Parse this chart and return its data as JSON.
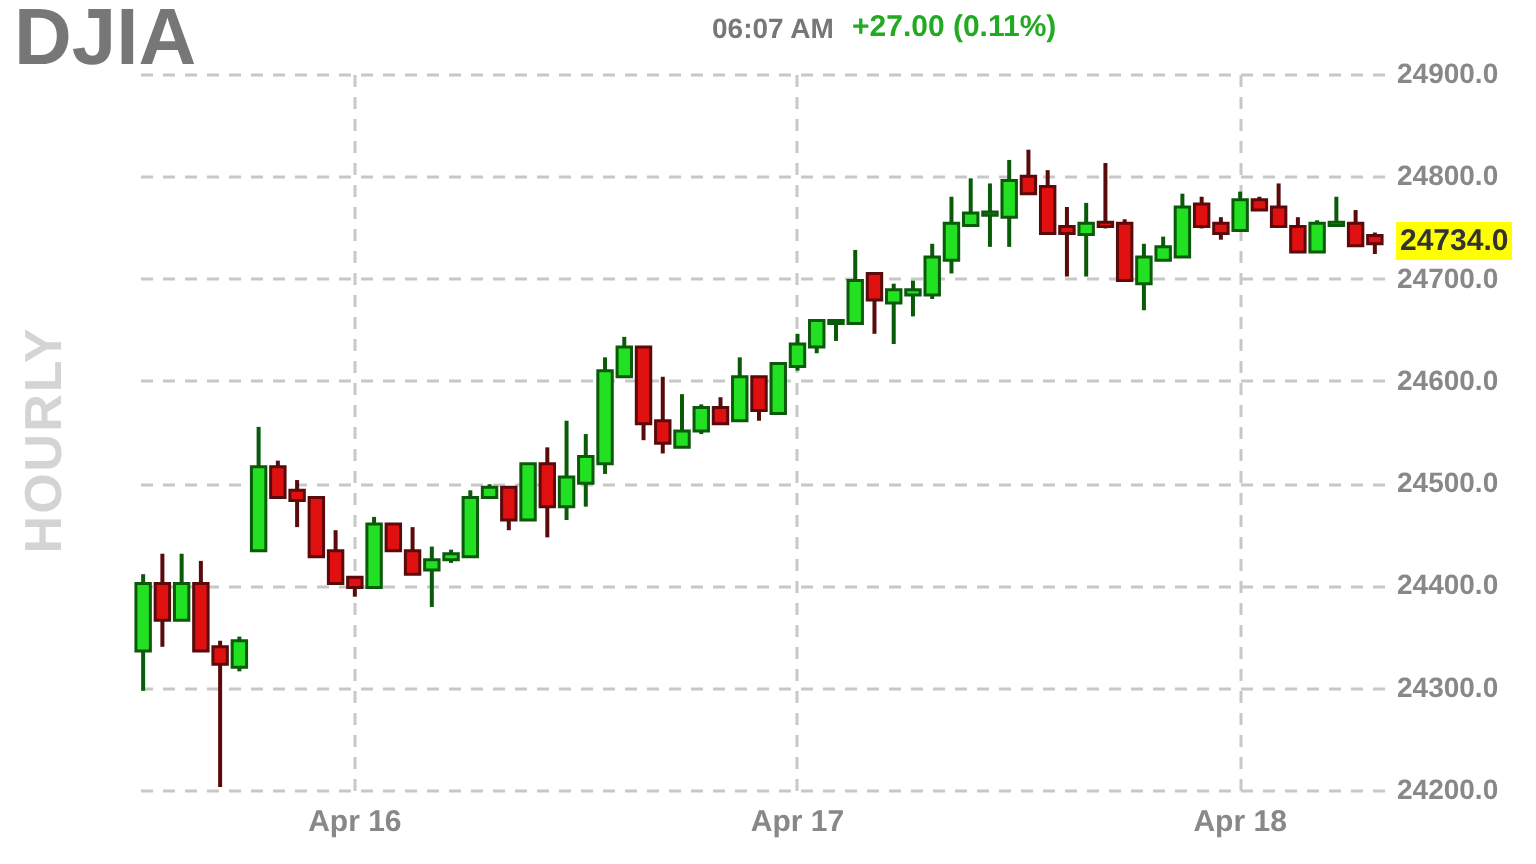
{
  "chart_data": {
    "type": "candlestick",
    "title": "DJIA",
    "annotations": [
      "HOURLY",
      "06:07 AM",
      "+27.00 (0.11%)",
      "24734.0"
    ],
    "categories": [
      null,
      null,
      null,
      null,
      null,
      null,
      null,
      null,
      null,
      null,
      null,
      "Apr 16",
      null,
      null,
      null,
      null,
      null,
      null,
      null,
      null,
      null,
      null,
      null,
      null,
      null,
      null,
      null,
      null,
      null,
      null,
      null,
      null,
      null,
      null,
      "Apr 17",
      null,
      null,
      null,
      null,
      null,
      null,
      null,
      null,
      null,
      null,
      null,
      null,
      null,
      null,
      null,
      null,
      null,
      null,
      null,
      null,
      null,
      null,
      "Apr 18",
      null,
      null,
      null,
      null,
      null,
      null,
      null
    ],
    "ohlc": [
      [
        24336,
        24411,
        24297,
        24402
      ],
      [
        24402,
        24431,
        24340,
        24366
      ],
      [
        24366,
        24431,
        24366,
        24402
      ],
      [
        24402,
        24424,
        24336,
        24336
      ],
      [
        24340,
        24346,
        24203,
        24323
      ],
      [
        24320,
        24350,
        24316,
        24346
      ],
      [
        24434,
        24555,
        24434,
        24516
      ],
      [
        24516,
        24522,
        24486,
        24486
      ],
      [
        24493,
        24503,
        24457,
        24483
      ],
      [
        24486,
        24486,
        24428,
        24428
      ],
      [
        24434,
        24454,
        24402,
        24402
      ],
      [
        24408,
        24408,
        24389,
        24398
      ],
      [
        24398,
        24467,
        24398,
        24460
      ],
      [
        24460,
        24460,
        24434,
        24434
      ],
      [
        24434,
        24457,
        24411,
        24411
      ],
      [
        24415,
        24438,
        24379,
        24425
      ],
      [
        24425,
        24435,
        24422,
        24431
      ],
      [
        24428,
        24493,
        24428,
        24486
      ],
      [
        24486,
        24499,
        24486,
        24496
      ],
      [
        24496,
        24496,
        24454,
        24464
      ],
      [
        24464,
        24519,
        24464,
        24519
      ],
      [
        24519,
        24535,
        24447,
        24477
      ],
      [
        24477,
        24561,
        24464,
        24506
      ],
      [
        24500,
        24548,
        24477,
        24526
      ],
      [
        24519,
        24623,
        24509,
        24610
      ],
      [
        24604,
        24643,
        24604,
        24633
      ],
      [
        24633,
        24633,
        24542,
        24558
      ],
      [
        24561,
        24604,
        24529,
        24539
      ],
      [
        24535,
        24587,
        24535,
        24551
      ],
      [
        24551,
        24577,
        24548,
        24574
      ],
      [
        24574,
        24584,
        24558,
        24558
      ],
      [
        24561,
        24623,
        24561,
        24604
      ],
      [
        24604,
        24604,
        24561,
        24571
      ],
      [
        24568,
        24617,
        24568,
        24617
      ],
      [
        24614,
        24646,
        24610,
        24636
      ],
      [
        24633,
        24659,
        24627,
        24659
      ],
      [
        24656,
        24659,
        24639,
        24659
      ],
      [
        24656,
        24728,
        24656,
        24698
      ],
      [
        24705,
        24705,
        24646,
        24679
      ],
      [
        24676,
        24695,
        24636,
        24689
      ],
      [
        24684,
        24698,
        24663,
        24689
      ],
      [
        24684,
        24734,
        24680,
        24721
      ],
      [
        24718,
        24780,
        24705,
        24754
      ],
      [
        24752,
        24798,
        24752,
        24764
      ],
      [
        24762,
        24793,
        24731,
        24765
      ],
      [
        24760,
        24816,
        24731,
        24796
      ],
      [
        24800,
        24826,
        24783,
        24783
      ],
      [
        24790,
        24806,
        24744,
        24744
      ],
      [
        24751,
        24770,
        24702,
        24744
      ],
      [
        24743,
        24774,
        24702,
        24754
      ],
      [
        24755,
        24813,
        24749,
        24751
      ],
      [
        24754,
        24758,
        24698,
        24698
      ],
      [
        24695,
        24734,
        24669,
        24721
      ],
      [
        24718,
        24741,
        24718,
        24731
      ],
      [
        24721,
        24783,
        24721,
        24770
      ],
      [
        24773,
        24780,
        24749,
        24751
      ],
      [
        24754,
        24760,
        24738,
        24744
      ],
      [
        24747,
        24785,
        24747,
        24777
      ],
      [
        24777,
        24780,
        24767,
        24767
      ],
      [
        24770,
        24793,
        24751,
        24751
      ],
      [
        24751,
        24760,
        24726,
        24726
      ],
      [
        24726,
        24757,
        24726,
        24754
      ],
      [
        24752,
        24780,
        24752,
        24755
      ],
      [
        24754,
        24767,
        24732,
        24732
      ],
      [
        24742,
        24745,
        24724,
        24734
      ]
    ],
    "ylim": [
      24200,
      24900
    ],
    "yticks": [
      {
        "value": 24200,
        "label": "24200.0"
      },
      {
        "value": 24300,
        "label": "24300.0"
      },
      {
        "value": 24400,
        "label": "24400.0"
      },
      {
        "value": 24500,
        "label": "24500.0"
      },
      {
        "value": 24600,
        "label": "24600.0"
      },
      {
        "value": 24700,
        "label": "24700.0"
      },
      {
        "value": 24800,
        "label": "24800.0"
      },
      {
        "value": 24900,
        "label": "24900.0"
      }
    ],
    "grid": true
  }
}
